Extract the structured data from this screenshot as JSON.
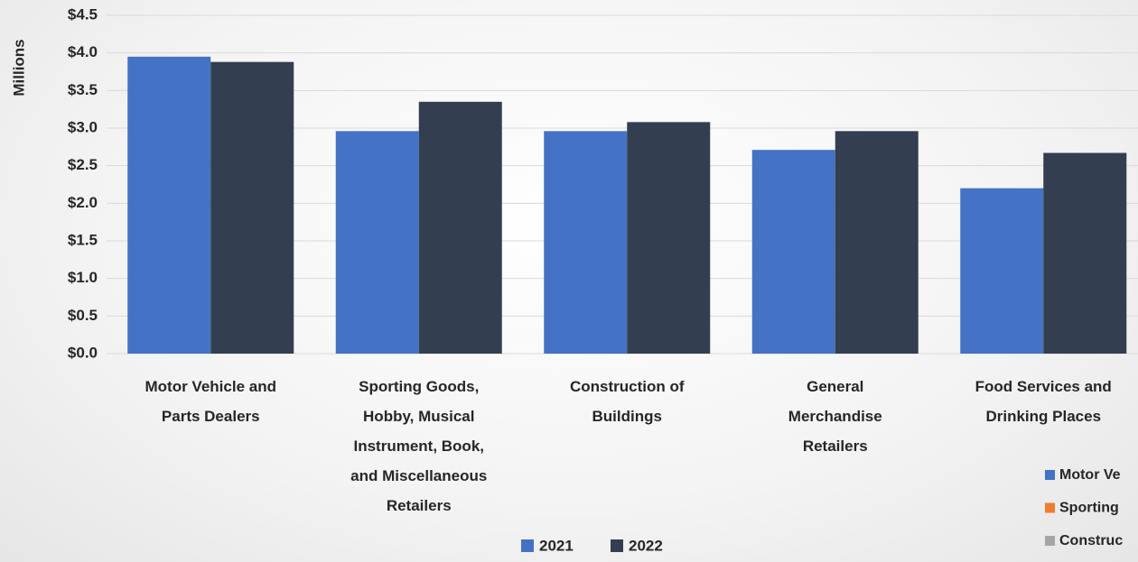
{
  "chart_data": {
    "type": "bar",
    "ylabel": "Millions",
    "categories": [
      "Motor Vehicle and\nParts Dealers",
      "Sporting Goods,\nHobby, Musical\nInstrument, Book,\nand Miscellaneous\nRetailers",
      "Construction of\nBuildings",
      "General\nMerchandise\nRetailers",
      "Food Services and\nDrinking Places"
    ],
    "series": [
      {
        "name": "2021",
        "color": "#4472c4",
        "values": [
          3.95,
          2.96,
          2.96,
          2.71,
          2.2
        ]
      },
      {
        "name": "2022",
        "color": "#333f50",
        "values": [
          3.88,
          3.35,
          3.08,
          2.96,
          2.67
        ]
      }
    ],
    "ylim": [
      0,
      4.5
    ],
    "yticks": [
      {
        "value": 0,
        "label": "$0.0"
      },
      {
        "value": 0.5,
        "label": "$0.5"
      },
      {
        "value": 1,
        "label": "$1.0"
      },
      {
        "value": 1.5,
        "label": "$1.5"
      },
      {
        "value": 2,
        "label": "$2.0"
      },
      {
        "value": 2.5,
        "label": "$2.5"
      },
      {
        "value": 3,
        "label": "$3.0"
      },
      {
        "value": 3.5,
        "label": "$3.5"
      },
      {
        "value": 4,
        "label": "$4.0"
      },
      {
        "value": 4.5,
        "label": "$4.5"
      }
    ],
    "grid": true,
    "legend": "bottom",
    "side_legend": [
      {
        "name": "Motor Ve",
        "color": "#4472c4"
      },
      {
        "name": "Sporting",
        "color": "#ed7d31"
      },
      {
        "name": "Construc",
        "color": "#a5a5a5"
      }
    ]
  }
}
